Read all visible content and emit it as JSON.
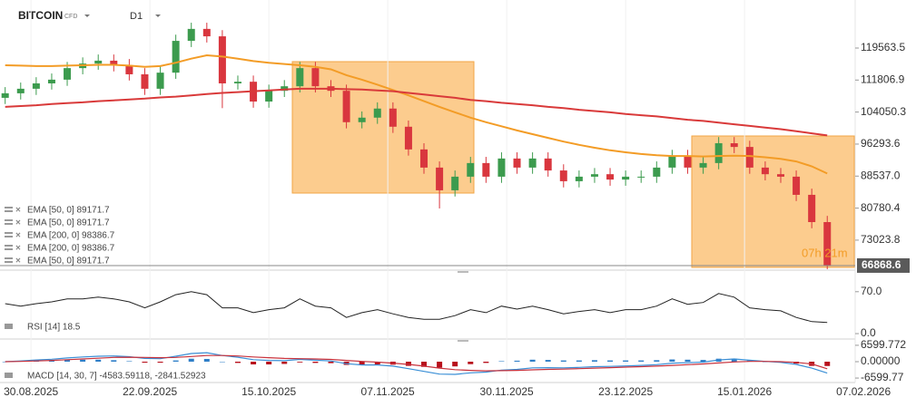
{
  "header": {
    "symbol": "BITCOIN",
    "instrument": "CFD",
    "timeframe": "D1"
  },
  "chart_data": [
    {
      "type": "candlestick",
      "x": [
        0,
        3,
        6,
        9,
        12,
        15,
        18,
        21,
        24,
        27,
        30,
        33,
        36,
        39,
        42,
        45,
        48,
        51,
        54,
        57,
        60,
        63,
        66,
        69,
        72,
        75,
        78,
        81,
        84,
        87,
        90,
        93,
        96,
        99,
        102,
        105,
        108,
        111,
        114,
        117,
        120,
        123,
        126,
        129,
        132,
        135,
        138,
        141,
        144,
        147,
        150,
        153,
        156,
        159
      ],
      "open": [
        107500,
        108600,
        109700,
        111000,
        111900,
        114700,
        115800,
        116500,
        115400,
        113200,
        109700,
        113600,
        121300,
        124200,
        122400,
        111000,
        111400,
        106600,
        109200,
        110300,
        114700,
        110300,
        109200,
        101600,
        102700,
        104900,
        100500,
        95000,
        90600,
        85100,
        88400,
        91700,
        88400,
        92800,
        90600,
        92800,
        89900,
        87300,
        88400,
        89000,
        87700,
        88400,
        88400,
        90600,
        93400,
        90600,
        91700,
        96500,
        95600,
        90600,
        89000,
        88400,
        84000,
        77400
      ],
      "high": [
        110100,
        111200,
        112500,
        113400,
        116200,
        117300,
        118000,
        118000,
        116900,
        114700,
        115100,
        122800,
        125700,
        125700,
        123900,
        112900,
        112900,
        110700,
        111800,
        116200,
        116200,
        111800,
        110700,
        104200,
        106400,
        106400,
        102000,
        96500,
        92100,
        89900,
        93200,
        93200,
        94300,
        94300,
        94300,
        94300,
        91400,
        89900,
        90500,
        90500,
        89900,
        89900,
        92100,
        94900,
        94900,
        93200,
        98000,
        98000,
        97100,
        92100,
        90500,
        89900,
        85500,
        78900
      ],
      "low": [
        106000,
        107100,
        108200,
        109500,
        110400,
        113200,
        114300,
        113900,
        111700,
        108200,
        108200,
        112100,
        119800,
        120900,
        105000,
        109500,
        105100,
        105100,
        107700,
        108800,
        108800,
        107700,
        100100,
        100100,
        101200,
        99000,
        93500,
        89100,
        80700,
        83600,
        86900,
        86900,
        86900,
        89100,
        89100,
        88400,
        85800,
        85800,
        86900,
        86200,
        86200,
        86900,
        86900,
        89100,
        89100,
        89100,
        90200,
        94100,
        89100,
        87500,
        86900,
        82500,
        75900,
        66000
      ],
      "close": [
        108600,
        109700,
        111000,
        111900,
        114700,
        115800,
        116500,
        115400,
        113200,
        109700,
        113600,
        121300,
        124200,
        122400,
        111000,
        111400,
        106600,
        109200,
        110300,
        114700,
        110300,
        109200,
        101600,
        102700,
        104900,
        100500,
        95000,
        90600,
        85100,
        88400,
        91700,
        88400,
        92800,
        90600,
        92800,
        89900,
        87300,
        88400,
        89000,
        87700,
        88400,
        88400,
        90600,
        93400,
        90600,
        91700,
        96500,
        95600,
        90600,
        89000,
        88400,
        84000,
        77400,
        66868.6
      ],
      "up_color": "#3c9b4e",
      "down_color": "#d9363e",
      "series": [
        {
          "color": "#f39c26",
          "values": [
            115400,
            115300,
            115200,
            115200,
            115300,
            115400,
            115500,
            115500,
            115300,
            115000,
            115200,
            116000,
            117000,
            117800,
            117500,
            117000,
            116400,
            116000,
            115700,
            115400,
            115000,
            114400,
            113000,
            111900,
            110700,
            109400,
            108100,
            106700,
            105300,
            104000,
            102700,
            101600,
            100600,
            99600,
            98700,
            97800,
            96900,
            96100,
            95400,
            94800,
            94300,
            93900,
            93600,
            93400,
            93400,
            93300,
            93400,
            93500,
            93400,
            93100,
            92700,
            92100,
            90900,
            89171.7
          ]
        },
        {
          "color": "#d93a3a",
          "values": [
            105300,
            105500,
            105700,
            106000,
            106200,
            106400,
            106700,
            106900,
            107100,
            107300,
            107600,
            107800,
            108100,
            108400,
            108700,
            108900,
            109100,
            109300,
            109500,
            109700,
            109700,
            109700,
            109600,
            109500,
            109300,
            109100,
            108700,
            108300,
            107900,
            107500,
            107000,
            106700,
            106300,
            106000,
            105700,
            105300,
            105000,
            104600,
            104300,
            104000,
            103600,
            103300,
            103000,
            102600,
            102200,
            101900,
            101500,
            101100,
            100700,
            100300,
            99900,
            99400,
            98900,
            98386.7
          ]
        }
      ],
      "legend": [
        "EMA [50, 0] 89171.7",
        "EMA [50, 0] 89171.7",
        "EMA [200, 0] 98386.7",
        "EMA [200, 0] 98386.7",
        "EMA [50, 0] 89171.7"
      ],
      "countdown": "07h 21m",
      "last_price": 66868.6,
      "ylim": [
        65980,
        131200
      ],
      "yticks": [
        119563.5,
        111806.9,
        104050.3,
        96293.6,
        {
          "value": 88537,
          "label": "88537.0"
        },
        80780.4,
        73023.8
      ],
      "xlim": [
        -1,
        164.4
      ],
      "xticks": [
        {
          "value": 5,
          "label": "30.08.2025"
        },
        {
          "value": 28,
          "label": "22.09.2025"
        },
        {
          "value": 51,
          "label": "15.10.2025"
        },
        {
          "value": 74,
          "label": "07.11.2025"
        },
        {
          "value": 97,
          "label": "30.11.2025"
        },
        {
          "value": 120,
          "label": "23.12.2025"
        },
        {
          "value": 143,
          "label": "15.01.2026"
        },
        {
          "value": 166,
          "label": "07.02.2026"
        }
      ]
    },
    {
      "type": "line",
      "label": "RSI [14] 18.5",
      "series": [
        {
          "color": "#222222",
          "values": [
            50,
            46,
            50,
            53,
            58,
            58,
            61,
            58,
            53,
            43,
            53,
            65,
            70,
            65,
            43,
            43,
            35,
            40,
            43,
            58,
            46,
            43,
            27,
            35,
            40,
            33,
            27,
            24,
            24,
            30,
            40,
            35,
            46,
            41,
            46,
            40,
            33,
            37,
            40,
            35,
            40,
            40,
            46,
            58,
            49,
            52,
            67,
            61,
            43,
            40,
            38,
            27,
            20,
            18.5
          ]
        }
      ],
      "ylim": [
        -6,
        100
      ],
      "yticks": [
        {
          "value": 70,
          "label": "70.0"
        },
        {
          "value": 0,
          "label": "0.0"
        }
      ]
    },
    {
      "type": "macd",
      "label": "MACD [14, 30, 7] -4583.59118, -2841.52923",
      "series": [
        {
          "color": "#3a8fd6",
          "values": [
            0,
            300,
            700,
            1000,
            1500,
            1900,
            2200,
            2300,
            2000,
            1300,
            1200,
            2200,
            3300,
            3600,
            2500,
            1800,
            800,
            500,
            400,
            900,
            600,
            300,
            -800,
            -1300,
            -1300,
            -1800,
            -2800,
            -3900,
            -5000,
            -5100,
            -4500,
            -4200,
            -3400,
            -3100,
            -2500,
            -2400,
            -2500,
            -2300,
            -2000,
            -1900,
            -1700,
            -1500,
            -1200,
            -600,
            -400,
            -200,
            700,
            1100,
            600,
            100,
            -300,
            -1100,
            -2600,
            -4583.59118
          ]
        },
        {
          "color": "#c8323c",
          "values": [
            0,
            100,
            300,
            500,
            800,
            1100,
            1400,
            1700,
            1800,
            1700,
            1600,
            1700,
            2100,
            2500,
            2500,
            2300,
            1900,
            1600,
            1300,
            1200,
            1100,
            900,
            500,
            100,
            -200,
            -600,
            -1100,
            -1800,
            -2600,
            -3200,
            -3500,
            -3700,
            -3600,
            -3500,
            -3300,
            -3100,
            -3000,
            -2800,
            -2600,
            -2400,
            -2200,
            -2000,
            -1800,
            -1500,
            -1200,
            -900,
            -500,
            -100,
            100,
            100,
            0,
            -300,
            -900,
            -2841.52923
          ]
        }
      ],
      "histogram": {
        "up_color": "#2f7fc8",
        "down_color": "#b8101c",
        "values": [
          0,
          200,
          400,
          500,
          700,
          800,
          800,
          600,
          200,
          -400,
          -400,
          500,
          1200,
          1100,
          0,
          -500,
          -1100,
          -1100,
          -900,
          -300,
          -500,
          -600,
          -1300,
          -1400,
          -1100,
          -1200,
          -1700,
          -2100,
          -2400,
          -1900,
          -1000,
          -500,
          200,
          400,
          800,
          700,
          500,
          500,
          600,
          500,
          500,
          500,
          600,
          900,
          800,
          700,
          1200,
          1200,
          500,
          0,
          -300,
          -800,
          -1700,
          -1742.06
        ]
      },
      "ylim": [
        -8400,
        8400
      ],
      "yticks": [
        6599.772,
        {
          "value": 0,
          "label": "0.00000"
        },
        -6599.77
      ]
    }
  ]
}
